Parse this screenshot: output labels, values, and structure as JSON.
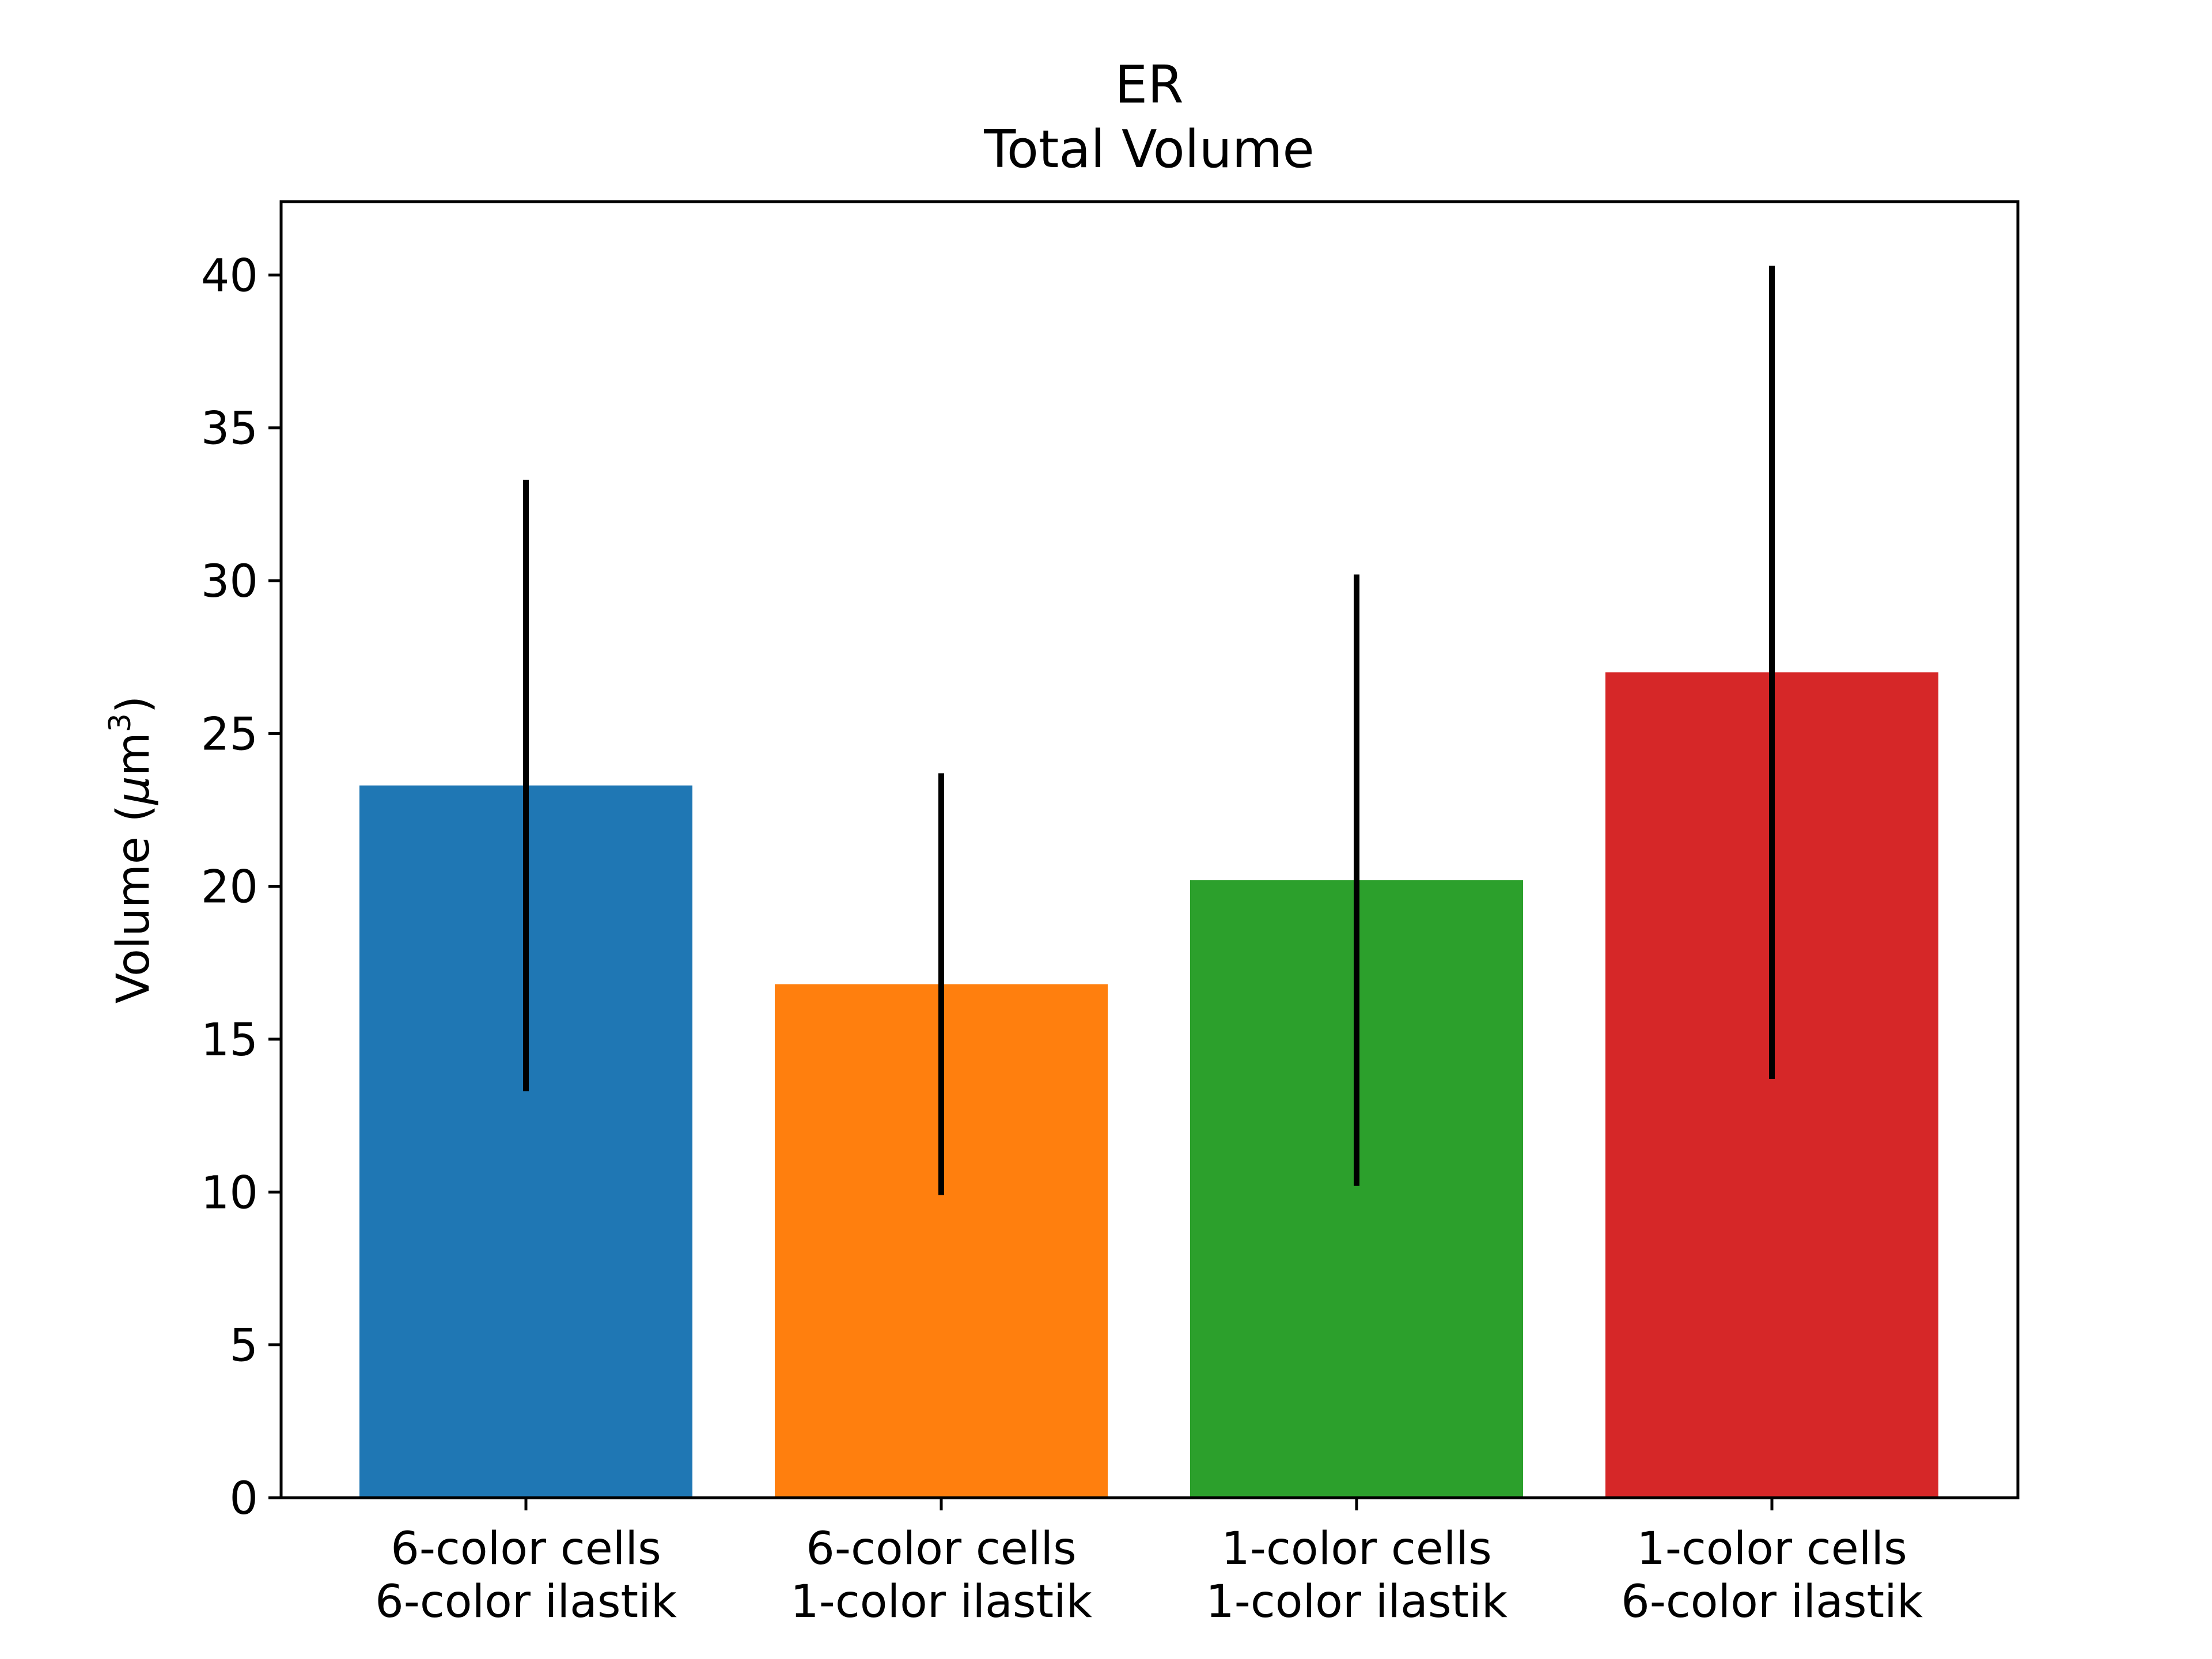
{
  "chart_data": {
    "type": "bar",
    "title": "ER",
    "subtitle": "Total Volume",
    "ylabel_prefix": "Volume (",
    "ylabel_mu": "μ",
    "ylabel_unit": "m",
    "ylabel_sup": "3",
    "ylabel_suffix": ")",
    "xlabel": "",
    "ylim": [
      0,
      42.4
    ],
    "yticks": [
      0,
      5,
      10,
      15,
      20,
      25,
      30,
      35,
      40
    ],
    "grid": false,
    "categories": [
      {
        "line1": "6-color cells",
        "line2": "6-color ilastik"
      },
      {
        "line1": "6-color cells",
        "line2": "1-color ilastik"
      },
      {
        "line1": "1-color cells",
        "line2": "1-color ilastik"
      },
      {
        "line1": "1-color cells",
        "line2": "6-color ilastik"
      }
    ],
    "values": [
      23.3,
      16.8,
      20.2,
      27.0
    ],
    "error": [
      10.0,
      6.9,
      10.0,
      13.3
    ],
    "colors": [
      "#1f77b4",
      "#ff7f0e",
      "#2ca02c",
      "#d62728"
    ],
    "error_color": "#000000"
  }
}
